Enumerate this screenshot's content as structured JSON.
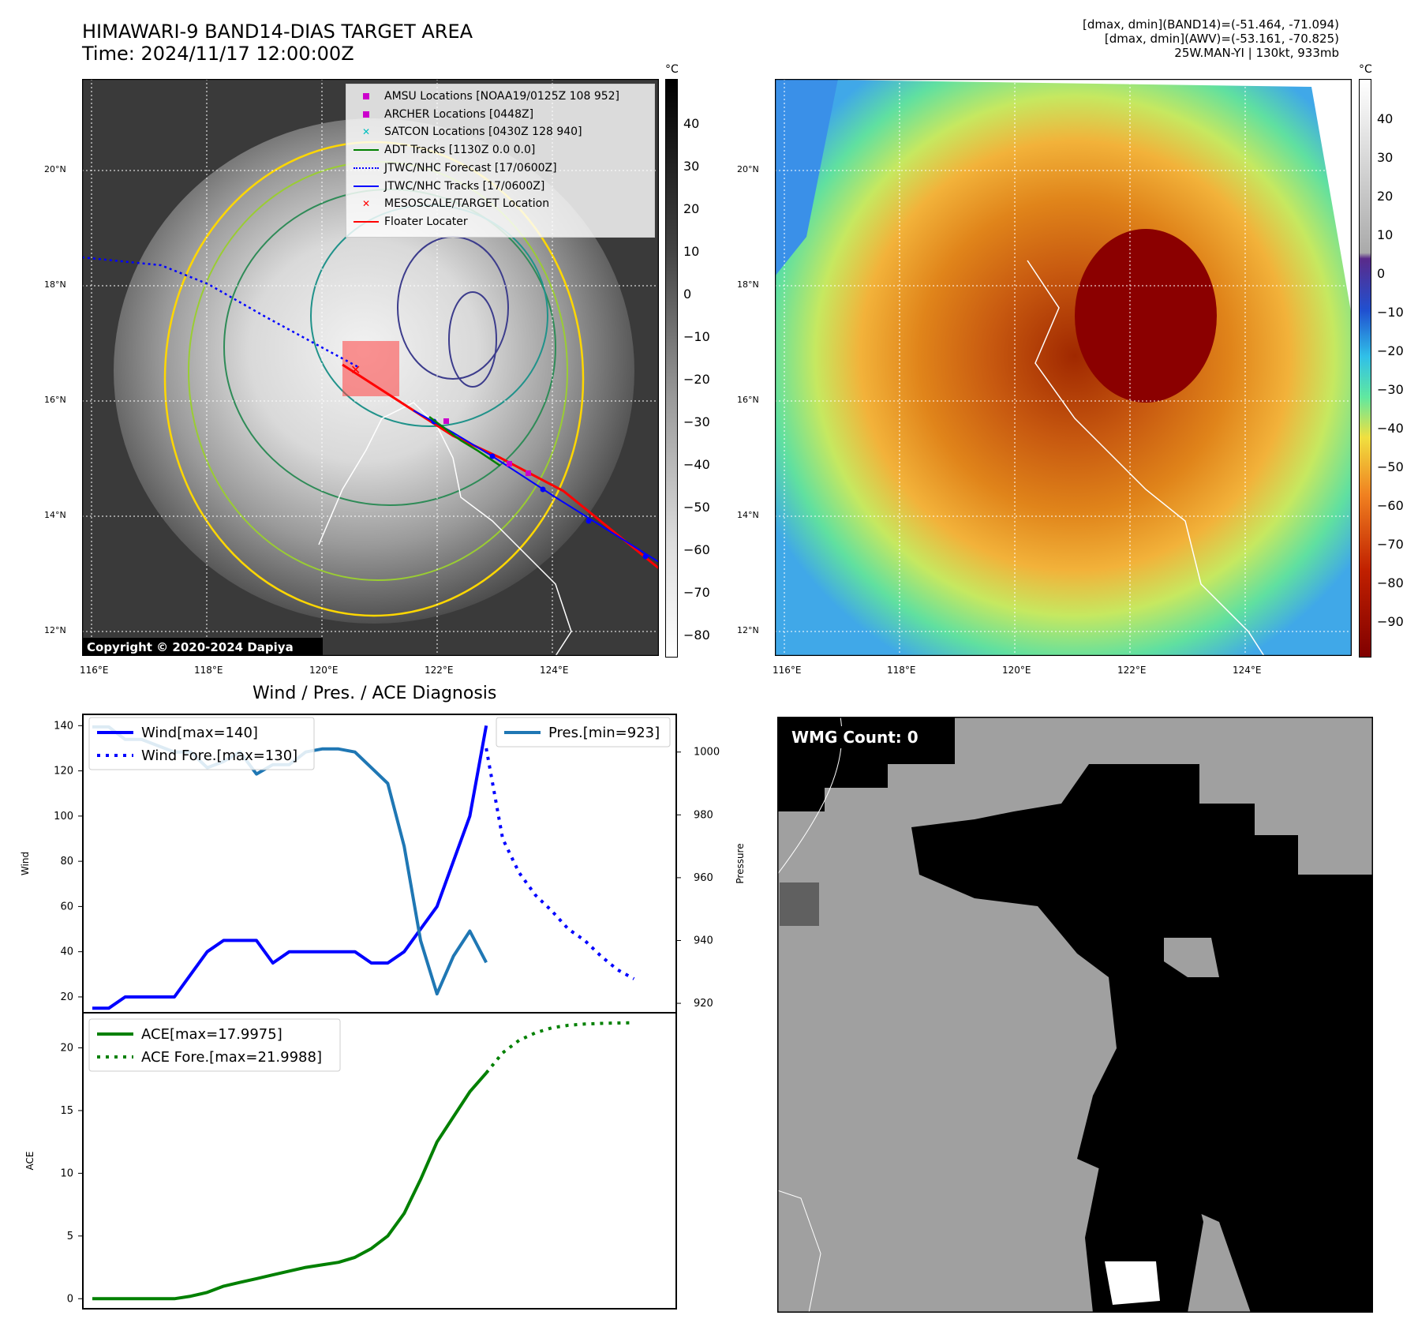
{
  "header": {
    "title_line1": "HIMAWARI-9 BAND14-DIAS TARGET AREA",
    "title_line2": "Time: 2024/11/17 12:00:00Z",
    "info_line1": "[dmax, dmin](BAND14)=(-51.464, -71.094)",
    "info_line2": "[dmax, dmin](AWV)=(-53.161, -70.825)",
    "info_line3": "25W.MAN-YI | 130kt, 933mb"
  },
  "map": {
    "lon_ticks": [
      "116°E",
      "118°E",
      "120°E",
      "122°E",
      "124°E"
    ],
    "lat_ticks": [
      "20°N",
      "18°N",
      "16°N",
      "14°N",
      "12°N"
    ],
    "copyright": "Copyright © 2020-2024 Dapiya",
    "colorbar_unit": "°C",
    "gray_colorbar_ticks": [
      "40",
      "30",
      "20",
      "10",
      "0",
      "−10",
      "−20",
      "−30",
      "−40",
      "−50",
      "−60",
      "−70",
      "−80"
    ],
    "color_colorbar_ticks": [
      "40",
      "30",
      "20",
      "10",
      "0",
      "−10",
      "−20",
      "−30",
      "−40",
      "−50",
      "−60",
      "−70",
      "−80",
      "−90"
    ],
    "legend": [
      {
        "label": "AMSU Locations [NOAA19/0125Z 108 952]",
        "symbol": "square",
        "color": "#cc00cc"
      },
      {
        "label": "ARCHER Locations [0448Z]",
        "symbol": "square",
        "color": "#cc00cc"
      },
      {
        "label": "SATCON Locations [0430Z 128 940]",
        "symbol": "x",
        "color": "#00bfbf"
      },
      {
        "label": "ADT Tracks [1130Z 0.0 0.0]",
        "symbol": "line",
        "color": "#008000"
      },
      {
        "label": "JTWC/NHC Forecast [17/0600Z]",
        "symbol": "dotted",
        "color": "#0000ff"
      },
      {
        "label": "JTWC/NHC Tracks [17/0600Z]",
        "symbol": "line-dot",
        "color": "#0000ff"
      },
      {
        "label": "MESOSCALE/TARGET Location",
        "symbol": "x",
        "color": "#ff0000"
      },
      {
        "label": "Floater Locater",
        "symbol": "line",
        "color": "#ff0000"
      }
    ]
  },
  "chart_data": [
    {
      "type": "line",
      "title": "Wind / Pres. / ACE Diagnosis",
      "ylabel": "Wind",
      "y2label": "Pressure",
      "ylim": [
        13,
        145
      ],
      "y2lim": [
        917,
        1012
      ],
      "yticks": [
        20,
        40,
        60,
        80,
        100,
        120,
        140
      ],
      "y2ticks": [
        920,
        940,
        960,
        980,
        1000
      ],
      "series": [
        {
          "name": "Wind[max=140]",
          "axis": "left",
          "color": "#0000ff",
          "style": "solid",
          "x": [
            0,
            1,
            2,
            3,
            4,
            5,
            6,
            7,
            8,
            9,
            10,
            11,
            12,
            13,
            14,
            15,
            16,
            17,
            18,
            19,
            20,
            21,
            22,
            23,
            24
          ],
          "values": [
            15,
            15,
            20,
            20,
            20,
            20,
            30,
            40,
            45,
            45,
            45,
            35,
            40,
            40,
            40,
            40,
            40,
            35,
            35,
            40,
            50,
            60,
            80,
            100,
            140
          ]
        },
        {
          "name": "Wind Fore.[max=130]",
          "axis": "left",
          "color": "#0000ff",
          "style": "dotted",
          "x": [
            24,
            25,
            26,
            27,
            28,
            29,
            30,
            31,
            32,
            33
          ],
          "values": [
            130,
            90,
            75,
            65,
            58,
            50,
            45,
            38,
            32,
            28
          ]
        },
        {
          "name": "Pres.[min=923]",
          "axis": "right",
          "color": "#1f77b4",
          "style": "solid",
          "x": [
            0,
            1,
            2,
            3,
            4,
            5,
            6,
            7,
            8,
            9,
            10,
            11,
            12,
            13,
            14,
            15,
            16,
            17,
            18,
            19,
            20,
            21,
            22,
            23,
            24
          ],
          "values": [
            1008,
            1008,
            1004,
            1004,
            1002,
            1000,
            1000,
            995,
            997,
            1000,
            993,
            996,
            996,
            1000,
            1001,
            1001,
            1000,
            995,
            990,
            970,
            940,
            923,
            935,
            943,
            933
          ]
        }
      ]
    },
    {
      "type": "line",
      "ylabel": "ACE",
      "ylim": [
        -0.8,
        22.8
      ],
      "yticks": [
        0,
        5,
        10,
        15,
        20
      ],
      "series": [
        {
          "name": "ACE[max=17.9975]",
          "color": "#008000",
          "style": "solid",
          "x": [
            0,
            1,
            2,
            3,
            4,
            5,
            6,
            7,
            8,
            9,
            10,
            11,
            12,
            13,
            14,
            15,
            16,
            17,
            18,
            19,
            20,
            21,
            22,
            23,
            24
          ],
          "values": [
            0,
            0,
            0,
            0,
            0,
            0,
            0.2,
            0.5,
            1.0,
            1.3,
            1.6,
            1.9,
            2.2,
            2.5,
            2.7,
            2.9,
            3.3,
            4.0,
            5.0,
            6.8,
            9.5,
            12.5,
            14.5,
            16.5,
            18.0
          ]
        },
        {
          "name": "ACE Fore.[max=21.9988]",
          "color": "#008000",
          "style": "dotted",
          "x": [
            24,
            25,
            26,
            27,
            28,
            29,
            30,
            31,
            32,
            33
          ],
          "values": [
            18.0,
            19.6,
            20.6,
            21.2,
            21.6,
            21.8,
            21.9,
            21.95,
            21.98,
            22.0
          ]
        }
      ]
    }
  ],
  "wmg": {
    "count_label": "WMG Count: 0"
  }
}
